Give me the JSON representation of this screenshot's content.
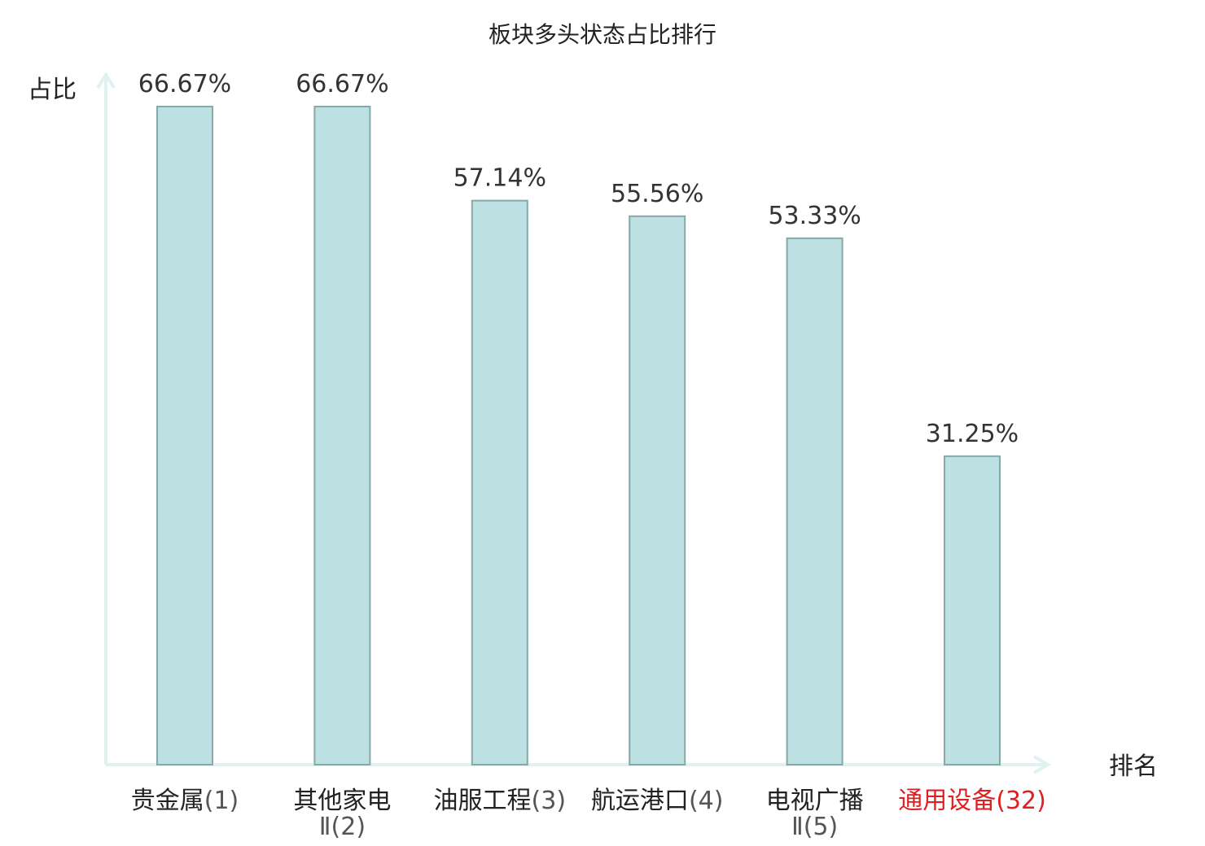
{
  "chart_data": {
    "type": "bar",
    "title": "板块多头状态占比排行",
    "ylabel": "占比",
    "xlabel": "排名",
    "ylim": [
      0,
      66.67
    ],
    "grid": false,
    "legend": "none",
    "categories": [
      {
        "name": "贵金属",
        "rank": "(1)",
        "highlight": false
      },
      {
        "name": "其他家电",
        "name2": "Ⅱ",
        "rank": "(2)",
        "highlight": false
      },
      {
        "name": "油服工程",
        "rank": "(3)",
        "highlight": false
      },
      {
        "name": "航运港口",
        "rank": "(4)",
        "highlight": false
      },
      {
        "name": "电视广播",
        "name2": "Ⅱ",
        "rank": "(5)",
        "highlight": false
      },
      {
        "name": "通用设备",
        "rank": "(32)",
        "highlight": true
      }
    ],
    "values": [
      66.67,
      66.67,
      57.14,
      55.56,
      53.33,
      31.25
    ],
    "value_labels": [
      "66.67%",
      "66.67%",
      "57.14%",
      "55.56%",
      "53.33%",
      "31.25%"
    ],
    "colors": {
      "bar_fill": "#bde0e3",
      "bar_stroke": "#86a8a8",
      "axis": "#dff2ef",
      "text": "#333333",
      "highlight": "#e02020"
    }
  }
}
